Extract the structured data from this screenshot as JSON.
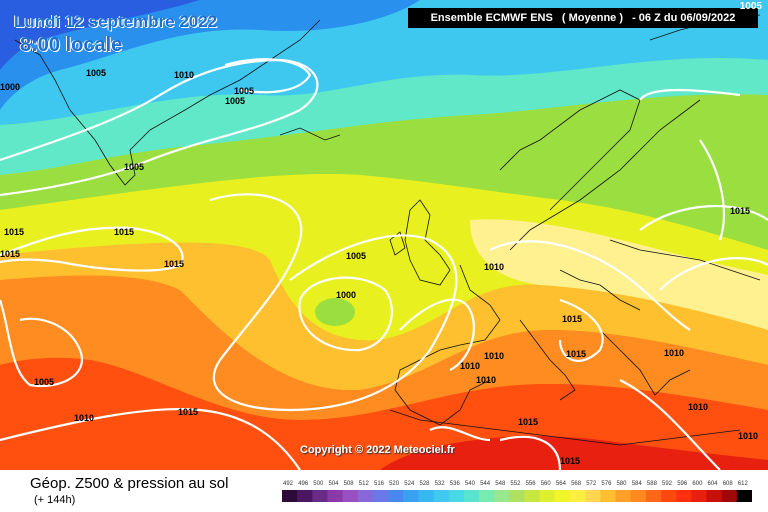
{
  "header": {
    "date": "Lundi 12 septembre 2022",
    "time": "8:00 locale",
    "model_label": "Ensemble ECMWF ENS",
    "model_mode": "( Moyenne )",
    "run_label": "- 06 Z du 06/09/2022",
    "corner_value": "1005"
  },
  "footer": {
    "variable": "Géop. Z500 & pression au sol",
    "lead_time": "(+ 144h)",
    "copyright": "Copyright © 2022 Meteociel.fr"
  },
  "colors": {
    "z492": "#3a1b66",
    "z520": "#2a6ae8",
    "z540": "#3ec8f0",
    "z548": "#60e8c8",
    "z556": "#9ade40",
    "z564": "#e8f020",
    "z572": "#ffe060",
    "z576": "#ffc030",
    "z584": "#ff8c20",
    "z592": "#ff5010",
    "z600": "#e82010",
    "isobar": "#ffffff",
    "coast": "#111111"
  },
  "scale": {
    "values": [
      "492",
      "496",
      "500",
      "504",
      "508",
      "512",
      "516",
      "520",
      "524",
      "528",
      "532",
      "536",
      "540",
      "544",
      "548",
      "552",
      "556",
      "560",
      "564",
      "568",
      "572",
      "576",
      "580",
      "584",
      "588",
      "592",
      "596",
      "600",
      "604",
      "608",
      "612"
    ],
    "colors": [
      "#2d0a3a",
      "#4a1860",
      "#6a2a88",
      "#8a3aa8",
      "#9a50c0",
      "#8868d8",
      "#6a78e8",
      "#4a88f0",
      "#3aa0f0",
      "#38b8f0",
      "#40c8f0",
      "#48d8e8",
      "#58e4d0",
      "#78ecb0",
      "#98e890",
      "#b0e060",
      "#c8e640",
      "#e0ee30",
      "#f0f428",
      "#fff040",
      "#ffd850",
      "#ffc030",
      "#ffa028",
      "#ff8820",
      "#ff6818",
      "#ff4810",
      "#ff3010",
      "#e82010",
      "#c81008",
      "#a00808",
      "#000000"
    ]
  },
  "isobar_labels": [
    {
      "text": "1005"
    },
    {
      "text": "1010"
    },
    {
      "text": "1005"
    },
    {
      "text": "1005"
    },
    {
      "text": "1000"
    },
    {
      "text": "1005"
    },
    {
      "text": "1015"
    },
    {
      "text": "1015"
    },
    {
      "text": "1015"
    },
    {
      "text": "1015"
    },
    {
      "text": "1005"
    },
    {
      "text": "1000"
    },
    {
      "text": "1010"
    },
    {
      "text": "1015"
    },
    {
      "text": "1015"
    },
    {
      "text": "1010"
    },
    {
      "text": "1010"
    },
    {
      "text": "1010"
    },
    {
      "text": "1005"
    },
    {
      "text": "1010"
    },
    {
      "text": "1015"
    },
    {
      "text": "1015"
    },
    {
      "text": "1015"
    },
    {
      "text": "1010"
    },
    {
      "text": "1010"
    },
    {
      "text": "1010"
    },
    {
      "text": "1015"
    }
  ]
}
